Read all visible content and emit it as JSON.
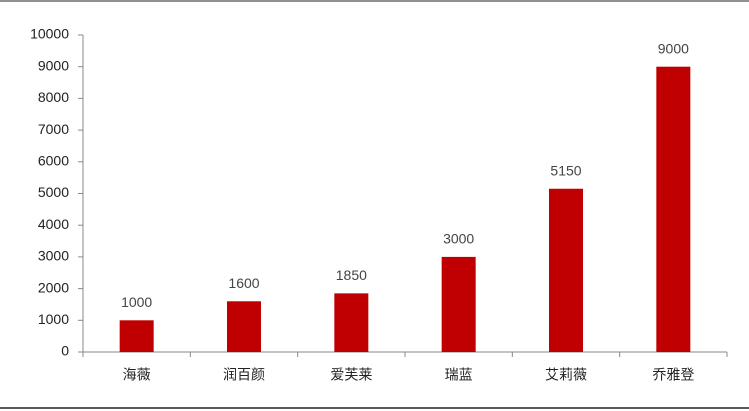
{
  "chart_data": {
    "type": "bar",
    "categories": [
      "海薇",
      "润百颜",
      "爱芙莱",
      "瑞蓝",
      "艾莉薇",
      "乔雅登"
    ],
    "values": [
      1000,
      1600,
      1850,
      3000,
      5150,
      9000
    ],
    "color": "#c00000",
    "ylim": [
      0,
      10000
    ],
    "yticks": [
      0,
      1000,
      2000,
      3000,
      4000,
      5000,
      6000,
      7000,
      8000,
      9000,
      10000
    ],
    "grid": false
  }
}
